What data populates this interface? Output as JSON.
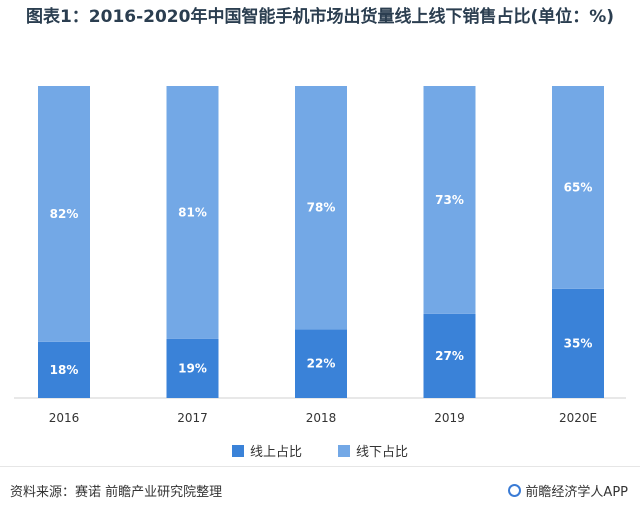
{
  "title": "图表1：2016-2020年中国智能手机市场出货量线上线下销售占比(单位：%)",
  "chart_data": {
    "type": "bar",
    "stacked": true,
    "categories": [
      "2016",
      "2017",
      "2018",
      "2019",
      "2020E"
    ],
    "series": [
      {
        "name": "线上占比",
        "values": [
          18,
          19,
          22,
          27,
          35
        ],
        "color": "#3a82d8",
        "labels": [
          "18%",
          "19%",
          "22%",
          "27%",
          "35%"
        ]
      },
      {
        "name": "线下占比",
        "values": [
          82,
          81,
          78,
          73,
          65
        ],
        "color": "#73a8e6",
        "labels": [
          "82%",
          "81%",
          "78%",
          "73%",
          "65%"
        ]
      }
    ],
    "ylim": [
      0,
      100
    ],
    "legend_position": "bottom",
    "grid": false
  },
  "footer": {
    "source": "资料来源：赛诺 前瞻产业研究院整理",
    "brand": "前瞻经济学人APP"
  }
}
